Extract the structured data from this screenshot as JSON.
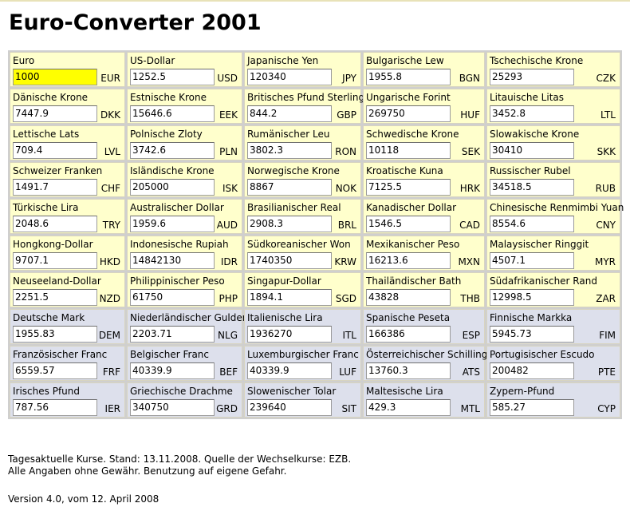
{
  "title": "Euro-Converter 2001",
  "rows": [
    [
      {
        "name": "Euro",
        "value": "1000",
        "code": "EUR",
        "highlight": true
      },
      {
        "name": "US-Dollar",
        "value": "1252.5",
        "code": "USD"
      },
      {
        "name": "Japanische Yen",
        "value": "120340",
        "code": "JPY"
      },
      {
        "name": "Bulgarische Lew",
        "value": "1955.8",
        "code": "BGN"
      },
      {
        "name": "Tschechische Krone",
        "value": "25293",
        "code": "CZK"
      }
    ],
    [
      {
        "name": "Dänische Krone",
        "value": "7447.9",
        "code": "DKK"
      },
      {
        "name": "Estnische Krone",
        "value": "15646.6",
        "code": "EEK"
      },
      {
        "name": "Britisches Pfund Sterling",
        "value": "844.2",
        "code": "GBP"
      },
      {
        "name": "Ungarische Forint",
        "value": "269750",
        "code": "HUF"
      },
      {
        "name": "Litauische Litas",
        "value": "3452.8",
        "code": "LTL"
      }
    ],
    [
      {
        "name": "Lettische Lats",
        "value": "709.4",
        "code": "LVL"
      },
      {
        "name": "Polnische Zloty",
        "value": "3742.6",
        "code": "PLN"
      },
      {
        "name": "Rumänischer Leu",
        "value": "3802.3",
        "code": "RON"
      },
      {
        "name": "Schwedische Krone",
        "value": "10118",
        "code": "SEK"
      },
      {
        "name": "Slowakische Krone",
        "value": "30410",
        "code": "SKK"
      }
    ],
    [
      {
        "name": "Schweizer Franken",
        "value": "1491.7",
        "code": "CHF"
      },
      {
        "name": "Isländische Krone",
        "value": "205000",
        "code": "ISK"
      },
      {
        "name": "Norwegische Krone",
        "value": "8867",
        "code": "NOK"
      },
      {
        "name": "Kroatische Kuna",
        "value": "7125.5",
        "code": "HRK"
      },
      {
        "name": "Russischer Rubel",
        "value": "34518.5",
        "code": "RUB"
      }
    ],
    [
      {
        "name": "Türkische Lira",
        "value": "2048.6",
        "code": "TRY"
      },
      {
        "name": "Australischer Dollar",
        "value": "1959.6",
        "code": "AUD"
      },
      {
        "name": "Brasilianischer Real",
        "value": "2908.3",
        "code": "BRL"
      },
      {
        "name": "Kanadischer Dollar",
        "value": "1546.5",
        "code": "CAD"
      },
      {
        "name": "Chinesische Renmimbi Yuan",
        "value": "8554.6",
        "code": "CNY"
      }
    ],
    [
      {
        "name": "Hongkong-Dollar",
        "value": "9707.1",
        "code": "HKD"
      },
      {
        "name": "Indonesische Rupiah",
        "value": "14842130",
        "code": "IDR"
      },
      {
        "name": "Südkoreanischer Won",
        "value": "1740350",
        "code": "KRW"
      },
      {
        "name": "Mexikanischer Peso",
        "value": "16213.6",
        "code": "MXN"
      },
      {
        "name": "Malaysischer Ringgit",
        "value": "4507.1",
        "code": "MYR"
      }
    ],
    [
      {
        "name": "Neuseeland-Dollar",
        "value": "2251.5",
        "code": "NZD"
      },
      {
        "name": "Philippinischer Peso",
        "value": "61750",
        "code": "PHP"
      },
      {
        "name": "Singapur-Dollar",
        "value": "1894.1",
        "code": "SGD"
      },
      {
        "name": "Thailändischer Bath",
        "value": "43828",
        "code": "THB"
      },
      {
        "name": "Südafrikanischer Rand",
        "value": "12998.5",
        "code": "ZAR"
      }
    ],
    [
      {
        "name": "Deutsche Mark",
        "value": "1955.83",
        "code": "DEM",
        "legacy": true
      },
      {
        "name": "Niederländischer Gulden",
        "value": "2203.71",
        "code": "NLG",
        "legacy": true
      },
      {
        "name": "Italienische Lira",
        "value": "1936270",
        "code": "ITL",
        "legacy": true
      },
      {
        "name": "Spanische Peseta",
        "value": "166386",
        "code": "ESP",
        "legacy": true
      },
      {
        "name": "Finnische Markka",
        "value": "5945.73",
        "code": "FIM",
        "legacy": true
      }
    ],
    [
      {
        "name": "Französischer Franc",
        "value": "6559.57",
        "code": "FRF",
        "legacy": true
      },
      {
        "name": "Belgischer Franc",
        "value": "40339.9",
        "code": "BEF",
        "legacy": true
      },
      {
        "name": "Luxemburgischer Franc",
        "value": "40339.9",
        "code": "LUF",
        "legacy": true
      },
      {
        "name": "Österreichischer Schilling",
        "value": "13760.3",
        "code": "ATS",
        "legacy": true
      },
      {
        "name": "Portugisischer Escudo",
        "value": "200482",
        "code": "PTE",
        "legacy": true
      }
    ],
    [
      {
        "name": "Irisches Pfund",
        "value": "787.56",
        "code": "IER",
        "legacy": true
      },
      {
        "name": "Griechische Drachme",
        "value": "340750",
        "code": "GRD",
        "legacy": true
      },
      {
        "name": "Slowenischer Tolar",
        "value": "239640",
        "code": "SIT",
        "legacy": true
      },
      {
        "name": "Maltesische Lira",
        "value": "429.3",
        "code": "MTL",
        "legacy": true
      },
      {
        "name": "Zypern-Pfund",
        "value": "585.27",
        "code": "CYP",
        "legacy": true
      }
    ]
  ],
  "footer": {
    "line1": "Tagesaktuelle Kurse. Stand: 13.11.2008. Quelle der Wechselkurse: EZB.",
    "line2": "Alle Angaben ohne Gewähr. Benutzung auf eigene Gefahr.",
    "version": "Version 4.0, vom 12. April 2008"
  },
  "colors": {
    "current": "#ffffcc",
    "legacy": "#dde0ec",
    "highlight": "#ffff00"
  }
}
